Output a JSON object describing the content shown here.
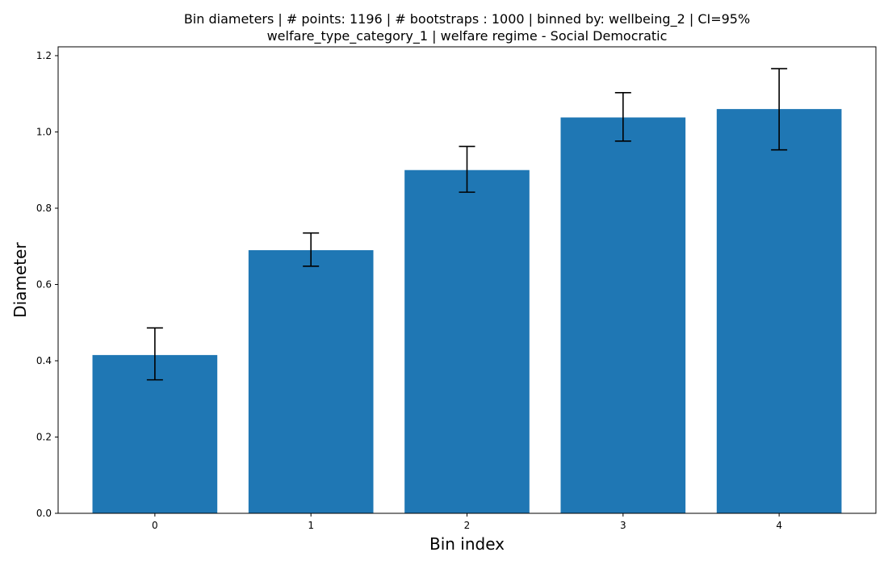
{
  "chart_data": {
    "type": "bar",
    "title": [
      "Bin diameters | # points: 1196 | # bootstraps : 1000 | binned by: wellbeing_2 | CI=95%",
      "welfare_type_category_1 | welfare regime - Social Democratic"
    ],
    "xlabel": "Bin index",
    "ylabel": "Diameter",
    "categories": [
      "0",
      "1",
      "2",
      "3",
      "4"
    ],
    "values": [
      0.415,
      0.69,
      0.9,
      1.038,
      1.06
    ],
    "ci_low": [
      0.35,
      0.648,
      0.842,
      0.976,
      0.953
    ],
    "ci_high": [
      0.486,
      0.735,
      0.962,
      1.103,
      1.166
    ],
    "ylim": [
      0.0,
      1.2232
    ],
    "yticks": [
      0.0,
      0.2,
      0.4,
      0.6,
      0.8,
      1.0,
      1.2
    ],
    "ytick_labels": [
      "0.0",
      "0.2",
      "0.4",
      "0.6",
      "0.8",
      "1.0",
      "1.2"
    ],
    "grid": false,
    "bar_color": "#1f77b4",
    "errorbar_color": "#000000"
  }
}
